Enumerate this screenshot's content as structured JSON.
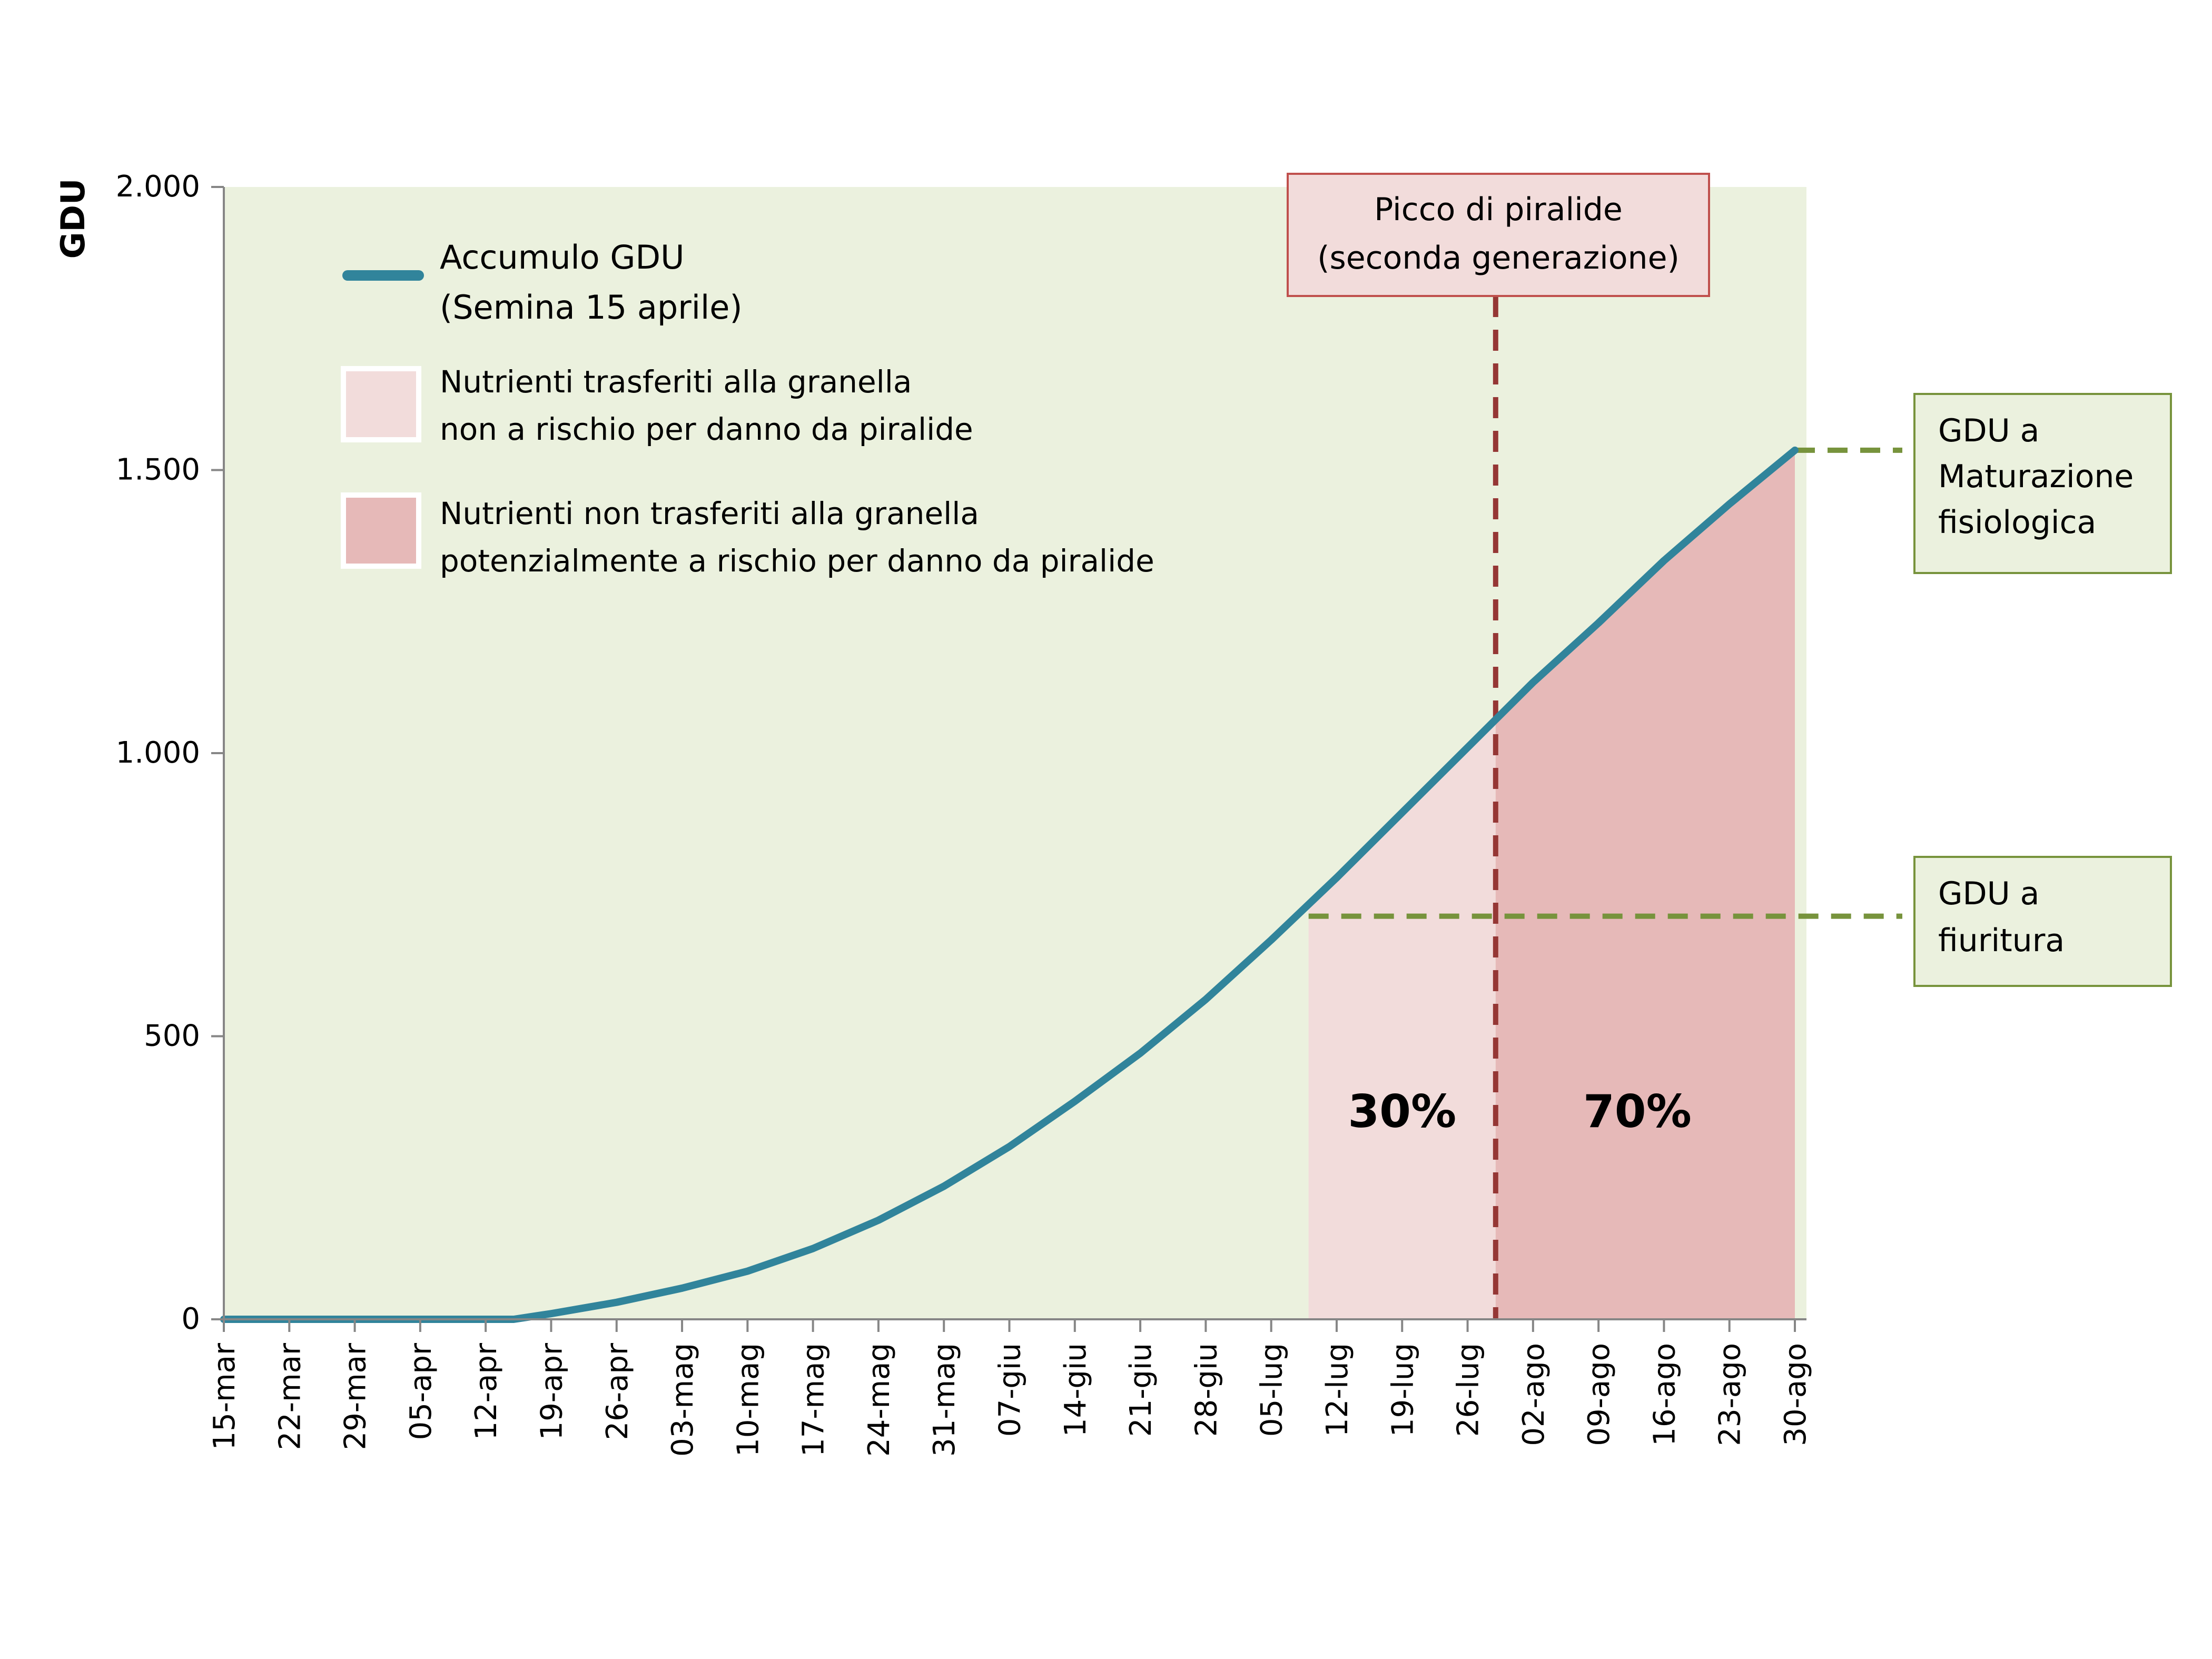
{
  "colors": {
    "plot_bg": "#ebf1de",
    "curve": "#31849b",
    "zone_pre": "#f2dcdb",
    "zone_post": "#e6b9b8",
    "peak_line": "#953735",
    "guide_line": "#77933c",
    "box_green_fill": "#ebf1de",
    "box_green_border": "#77933c",
    "box_red_fill": "#f2dcdb",
    "box_red_border": "#c0504d"
  },
  "chart_data": {
    "type": "area",
    "ylabel": "GDU",
    "xlabel": "",
    "ylim": [
      0,
      2000
    ],
    "y_ticks": [
      0,
      500,
      1000,
      1500,
      2000
    ],
    "y_tick_labels": [
      "0",
      "500",
      "1.000",
      "1.500",
      "2.000"
    ],
    "x_start": "2024-03-15",
    "x_end": "2024-08-30",
    "x_tick_labels": [
      "15-mar",
      "22-mar",
      "29-mar",
      "05-apr",
      "12-apr",
      "19-apr",
      "26-apr",
      "03-mag",
      "10-mag",
      "17-mag",
      "24-mag",
      "31-mag",
      "07-giu",
      "14-giu",
      "21-giu",
      "28-giu",
      "05-lug",
      "12-lug",
      "19-lug",
      "26-lug",
      "02-ago",
      "09-ago",
      "16-ago",
      "23-ago",
      "30-ago"
    ],
    "grid": false,
    "series": [
      {
        "name": "Accumulo GDU (Semina 15 aprile)",
        "points": [
          {
            "x": "2024-03-15",
            "y": 0
          },
          {
            "x": "2024-04-15",
            "y": 0
          },
          {
            "x": "2024-04-19",
            "y": 10
          },
          {
            "x": "2024-04-26",
            "y": 30
          },
          {
            "x": "2024-05-03",
            "y": 55
          },
          {
            "x": "2024-05-10",
            "y": 85
          },
          {
            "x": "2024-05-17",
            "y": 125
          },
          {
            "x": "2024-05-24",
            "y": 175
          },
          {
            "x": "2024-05-31",
            "y": 235
          },
          {
            "x": "2024-06-07",
            "y": 305
          },
          {
            "x": "2024-06-14",
            "y": 385
          },
          {
            "x": "2024-06-21",
            "y": 470
          },
          {
            "x": "2024-06-28",
            "y": 565
          },
          {
            "x": "2024-07-05",
            "y": 670
          },
          {
            "x": "2024-07-12",
            "y": 780
          },
          {
            "x": "2024-07-19",
            "y": 895
          },
          {
            "x": "2024-07-26",
            "y": 1010
          },
          {
            "x": "2024-08-02",
            "y": 1125
          },
          {
            "x": "2024-08-09",
            "y": 1230
          },
          {
            "x": "2024-08-16",
            "y": 1340
          },
          {
            "x": "2024-08-23",
            "y": 1440
          },
          {
            "x": "2024-08-30",
            "y": 1535
          }
        ]
      }
    ],
    "zones": [
      {
        "name": "Nutrienti trasferiti alla granella non a rischio per danno da piralide",
        "from": "2024-07-09",
        "to": "2024-07-29",
        "label": "30%"
      },
      {
        "name": "Nutrienti non trasferiti alla granella potenzialmente a rischio per danno da piralide",
        "from": "2024-07-29",
        "to": "2024-08-30",
        "label": "70%"
      }
    ],
    "peak": {
      "date": "2024-07-29",
      "label_line1": "Picco di piralide",
      "label_line2": "(seconda generazione)"
    },
    "flowering": {
      "y": 712,
      "from": "2024-07-09",
      "label_line1": "GDU a",
      "label_line2": "fiuritura"
    },
    "maturity": {
      "y": 1535,
      "label_line1": "GDU a",
      "label_line2": "Maturazione",
      "label_line3": "fisiologica"
    },
    "legend": {
      "placement": "top-left",
      "curve_line1": "Accumulo GDU",
      "curve_line2": "(Semina 15 aprile)",
      "pre_line1": "Nutrienti trasferiti alla granella",
      "pre_line2": "non a rischio per  danno da piralide",
      "post_line1": "Nutrienti non trasferiti alla granella",
      "post_line2": "potenzialmente a rischio per danno da piralide"
    }
  }
}
